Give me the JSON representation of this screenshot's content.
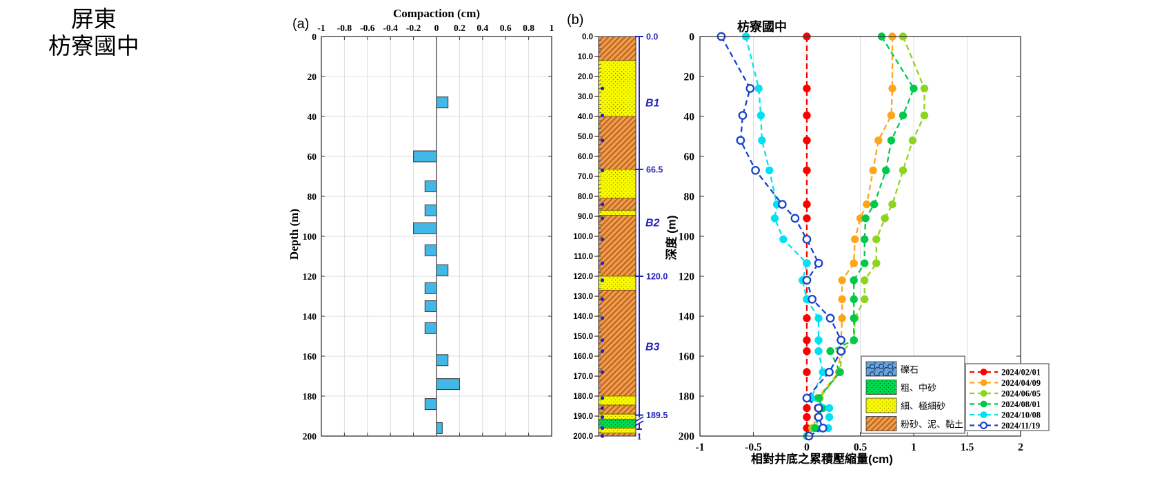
{
  "site_label": {
    "line1": "屏東",
    "line2": "枋寮國中"
  },
  "panel_labels": {
    "a": "(a)",
    "b": "(b)"
  },
  "colors": {
    "bar_fill": "#41b8e8",
    "grid": "#dcdcdc",
    "axis": "#333333",
    "zone_axis": "#2222bb",
    "anchor_dot": "#1828c8"
  },
  "chart_data": [
    {
      "id": "compaction-bars",
      "type": "bar",
      "title": "Compaction (cm)",
      "ylabel": "Depth (m)",
      "xlim": [
        -1,
        1
      ],
      "xticks": [
        -1,
        -0.8,
        -0.6,
        -0.4,
        -0.2,
        0,
        0.2,
        0.4,
        0.6,
        0.8,
        1
      ],
      "xtick_labels": [
        "-1",
        "-0.8",
        "-0.6",
        "-0.4",
        "-0.2",
        "0",
        "0.2",
        "0.4",
        "0.6",
        "0.8",
        "1"
      ],
      "ylim": [
        0,
        200
      ],
      "yticks": [
        0,
        20,
        40,
        60,
        80,
        100,
        120,
        140,
        160,
        180,
        200
      ],
      "grid": true,
      "bar_thickness_m": 5.5,
      "depths": [
        33,
        60,
        75,
        87,
        96,
        107,
        117,
        126,
        135,
        146,
        162,
        174,
        184,
        196
      ],
      "values": [
        0.1,
        -0.2,
        -0.1,
        -0.1,
        -0.2,
        -0.1,
        0.1,
        -0.1,
        -0.1,
        -0.1,
        0.1,
        0.2,
        -0.1,
        0.05
      ]
    },
    {
      "id": "borehole-column",
      "type": "stratigraphic-column",
      "depth_range": [
        0,
        200
      ],
      "depth_tick_step": 10,
      "minor_tick_step": 2,
      "materials": [
        {
          "key": "gravel",
          "label": "礫石",
          "fill": "#6aa3dc",
          "pattern": "circles",
          "pattern_color": "#16406e"
        },
        {
          "key": "coarse_sand",
          "label": "粗、中砂",
          "fill": "#00dc50",
          "pattern": "dots",
          "pattern_color": "#006622"
        },
        {
          "key": "fine_sand",
          "label": "細、極細砂",
          "fill": "#fafa00",
          "pattern": "dots",
          "pattern_color": "#8f8f00"
        },
        {
          "key": "silt_mud_clay",
          "label": "粉砂、泥、黏土",
          "fill": "#f09a50",
          "pattern": "hatch",
          "pattern_color": "#b05f10"
        }
      ],
      "layers": [
        {
          "from": 0,
          "to": 12,
          "material": "silt_mud_clay"
        },
        {
          "from": 12,
          "to": 40,
          "material": "fine_sand"
        },
        {
          "from": 40,
          "to": 66.5,
          "material": "silt_mud_clay"
        },
        {
          "from": 66.5,
          "to": 81,
          "material": "fine_sand"
        },
        {
          "from": 81,
          "to": 87,
          "material": "silt_mud_clay"
        },
        {
          "from": 87,
          "to": 89.5,
          "material": "fine_sand"
        },
        {
          "from": 89.5,
          "to": 120,
          "material": "silt_mud_clay"
        },
        {
          "from": 120,
          "to": 127,
          "material": "fine_sand"
        },
        {
          "from": 127,
          "to": 180,
          "material": "silt_mud_clay"
        },
        {
          "from": 180,
          "to": 184.5,
          "material": "fine_sand"
        },
        {
          "from": 184.5,
          "to": 189,
          "material": "silt_mud_clay"
        },
        {
          "from": 189,
          "to": 191.5,
          "material": "fine_sand"
        },
        {
          "from": 191.5,
          "to": 196,
          "material": "coarse_sand"
        },
        {
          "from": 196,
          "to": 198.5,
          "material": "fine_sand"
        },
        {
          "from": 198.5,
          "to": 200,
          "material": "silt_mud_clay"
        }
      ],
      "anchor_depths": [
        26,
        39.5,
        52,
        67,
        84,
        91,
        101.5,
        113.5,
        122,
        131.5,
        141,
        152,
        157.5,
        168,
        181,
        186,
        190.5,
        196,
        200
      ],
      "zone_axis": {
        "tick_depths": [
          0,
          66.5,
          120,
          189.5
        ],
        "tick_labels": [
          "0.0",
          "66.5",
          "120.0",
          "189.5"
        ],
        "zones": [
          {
            "label": "B1",
            "mid_depth": 33
          },
          {
            "label": "B2",
            "mid_depth": 93
          },
          {
            "label": "B3",
            "mid_depth": 155
          }
        ],
        "bottom_label": "1"
      }
    },
    {
      "id": "cumulative-compaction-profile",
      "type": "line",
      "title": "枋寮國中",
      "xlabel": "相對井底之累積壓縮量(cm)",
      "ylabel": "深度 (m)",
      "xlim": [
        -1,
        2
      ],
      "xticks": [
        -1,
        -0.5,
        0,
        0.5,
        1,
        1.5,
        2
      ],
      "xtick_labels": [
        "-1",
        "-0.5",
        "0",
        "0.5",
        "1",
        "1.5",
        "2"
      ],
      "ylim": [
        0,
        200
      ],
      "yticks": [
        0,
        20,
        40,
        60,
        80,
        100,
        120,
        140,
        160,
        180,
        200
      ],
      "grid": "vertical",
      "legend_position": "bottom-right",
      "depths": [
        0,
        26,
        39.5,
        52,
        67,
        84,
        91,
        101.5,
        113.5,
        122,
        131.5,
        141,
        152,
        157.5,
        168,
        181,
        186,
        190.5,
        196,
        200
      ],
      "series": [
        {
          "name": "2024/02/01",
          "color": "#ff0000",
          "marker": "filled",
          "values": [
            0,
            0,
            0,
            0,
            0,
            0,
            0,
            0,
            0,
            0,
            0,
            0,
            0,
            0,
            0,
            0,
            0,
            0,
            0,
            0
          ]
        },
        {
          "name": "2024/04/09",
          "color": "#ffa517",
          "marker": "filled",
          "values": [
            0.8,
            0.8,
            0.79,
            0.67,
            0.62,
            0.56,
            0.5,
            0.45,
            0.44,
            0.33,
            0.33,
            0.33,
            0.32,
            0.31,
            0.3,
            0.1,
            0.1,
            0.1,
            0.05,
            0.0
          ]
        },
        {
          "name": "2024/06/05",
          "color": "#8ed41c",
          "marker": "filled",
          "values": [
            0.9,
            1.1,
            1.1,
            0.99,
            0.9,
            0.8,
            0.73,
            0.65,
            0.65,
            0.54,
            0.54,
            0.45,
            0.44,
            0.33,
            0.31,
            0.12,
            0.12,
            0.11,
            0.06,
            0.0
          ]
        },
        {
          "name": "2024/08/01",
          "color": "#00c94a",
          "marker": "filled",
          "values": [
            0.7,
            1.0,
            0.9,
            0.79,
            0.74,
            0.63,
            0.55,
            0.54,
            0.54,
            0.44,
            0.44,
            0.44,
            0.44,
            0.22,
            0.31,
            0.11,
            0.15,
            0.11,
            0.08,
            0.0
          ]
        },
        {
          "name": "2024/10/08",
          "color": "#00e1f2",
          "marker": "filled",
          "values": [
            -0.57,
            -0.45,
            -0.43,
            -0.42,
            -0.35,
            -0.28,
            -0.3,
            -0.22,
            0.0,
            -0.04,
            0.0,
            0.11,
            0.11,
            0.11,
            0.15,
            0.04,
            0.21,
            0.21,
            0.2,
            0.0
          ]
        },
        {
          "name": "2024/11/19",
          "color": "#1742cd",
          "marker": "open",
          "values": [
            -0.8,
            -0.53,
            -0.6,
            -0.62,
            -0.48,
            -0.23,
            -0.11,
            0.0,
            0.11,
            0.0,
            0.05,
            0.22,
            0.32,
            0.32,
            0.21,
            0.0,
            0.11,
            0.11,
            0.15,
            0.02
          ]
        }
      ]
    }
  ]
}
